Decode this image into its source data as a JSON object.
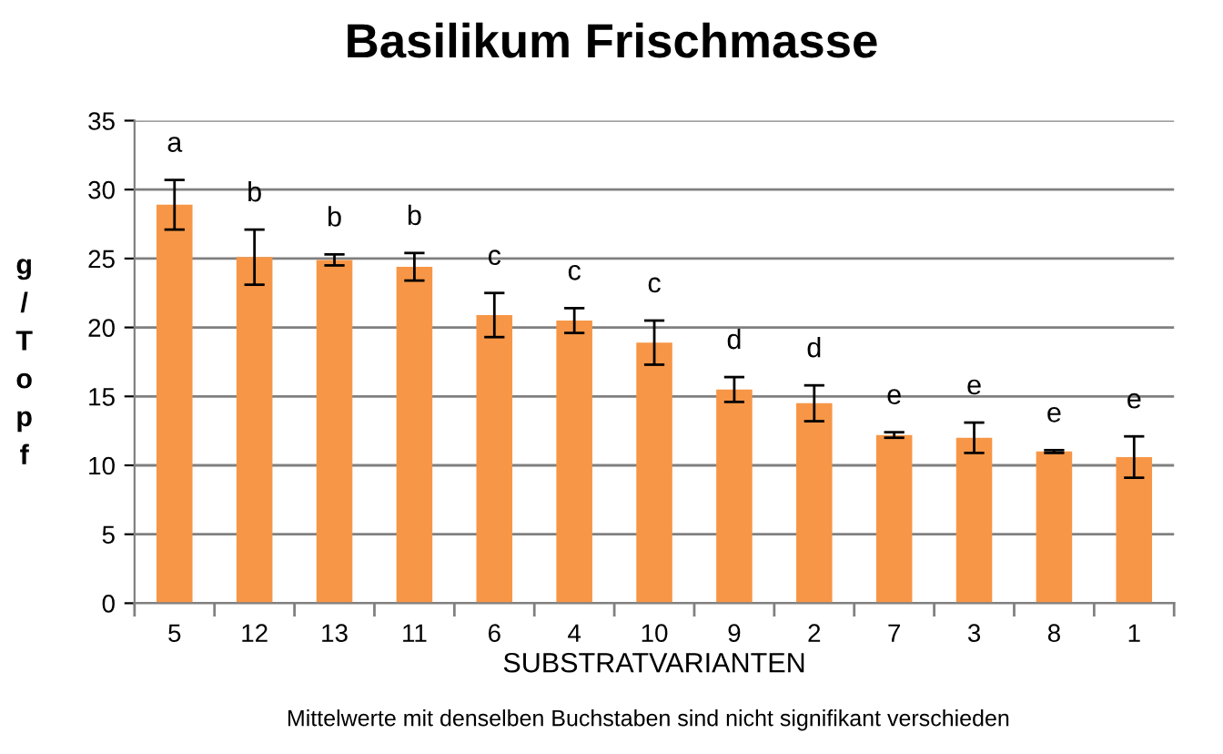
{
  "chart_data": {
    "type": "bar",
    "title": "Basilikum Frischmasse",
    "xlabel": "SUBSTRATVARIANTEN",
    "ylabel": "g/Topf",
    "categories": [
      "5",
      "12",
      "13",
      "11",
      "6",
      "4",
      "10",
      "9",
      "2",
      "7",
      "3",
      "8",
      "1"
    ],
    "values": [
      28.9,
      25.1,
      24.9,
      24.4,
      20.9,
      20.5,
      18.9,
      15.5,
      14.5,
      12.2,
      12.0,
      11.0,
      10.6
    ],
    "errors": [
      1.8,
      2.0,
      0.4,
      1.0,
      1.6,
      0.9,
      1.6,
      0.9,
      1.3,
      0.2,
      1.1,
      0.1,
      1.5
    ],
    "color": "#f79646",
    "ylim": [
      0,
      35
    ],
    "yticks": [
      0,
      5,
      10,
      15,
      20,
      25,
      30,
      35
    ],
    "grid": "y",
    "annotations": [
      "a",
      "b",
      "b",
      "b",
      "c",
      "c",
      "c",
      "d",
      "d",
      "e",
      "e",
      "e",
      "e",
      "Mittelwerte mit denselben Buchstaben sind nicht signifikant verschieden"
    ]
  }
}
